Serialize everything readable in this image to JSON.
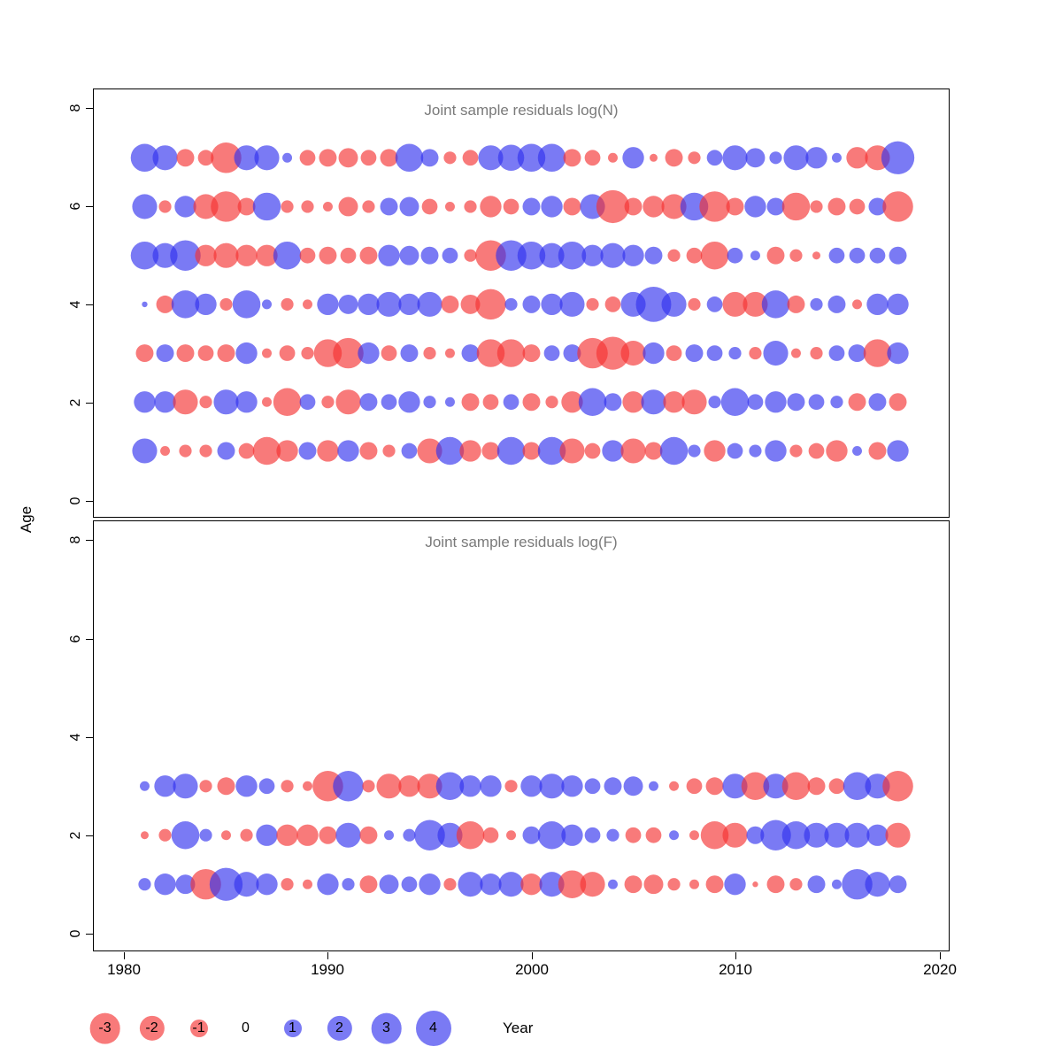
{
  "axes": {
    "x_label": "Year",
    "y_label": "Age",
    "x_ticks": [
      "1980",
      "1990",
      "2000",
      "2010",
      "2020"
    ],
    "y_ticks": [
      "0",
      "2",
      "4",
      "6",
      "8"
    ]
  },
  "legend": {
    "items": [
      {
        "label": "-3",
        "value": -3
      },
      {
        "label": "-2",
        "value": -2
      },
      {
        "label": "-1",
        "value": -1
      },
      {
        "label": "0",
        "value": 0
      },
      {
        "label": "1",
        "value": 1
      },
      {
        "label": "2",
        "value": 2
      },
      {
        "label": "3",
        "value": 3
      },
      {
        "label": "4",
        "value": 4
      }
    ]
  },
  "colors": {
    "negative": "#f53333",
    "positive": "#3333ee",
    "bubble_opacity": 0.65,
    "title_text": "#7a7a7a"
  },
  "chart_data": [
    {
      "type": "bubble",
      "title": "Joint sample residuals log(N)",
      "xlabel": "Year",
      "ylabel": "Age",
      "xlim": [
        1978.5,
        2020.5
      ],
      "ylim": [
        0,
        8
      ],
      "x_ticks": [
        1980,
        1990,
        2000,
        2010,
        2020
      ],
      "y_ticks": [
        0,
        2,
        4,
        6,
        8
      ],
      "size_encoding": "radius proportional to sqrt(|value|); red = negative residual, blue = positive residual",
      "years": [
        1981,
        1982,
        1983,
        1984,
        1985,
        1986,
        1987,
        1988,
        1989,
        1990,
        1991,
        1992,
        1993,
        1994,
        1995,
        1996,
        1997,
        1998,
        1999,
        2000,
        2001,
        2002,
        2003,
        2004,
        2005,
        2006,
        2007,
        2008,
        2009,
        2010,
        2011,
        2012,
        2013,
        2014,
        2015,
        2016,
        2017,
        2018
      ],
      "series": [
        {
          "age": 7,
          "values": [
            2.5,
            2,
            -1,
            -0.8,
            -3,
            2,
            2,
            0.3,
            -0.8,
            -1,
            -1.2,
            -0.8,
            -1,
            2.5,
            1,
            -0.5,
            -0.8,
            2,
            2.2,
            2.5,
            2.5,
            -1,
            -0.8,
            -0.3,
            1.5,
            -0.2,
            -1,
            -0.5,
            0.8,
            2,
            1.2,
            0.5,
            2,
            1.5,
            0.3,
            -1.5,
            -2,
            3.5
          ]
        },
        {
          "age": 6,
          "values": [
            2,
            -0.5,
            1.5,
            -2,
            -3,
            -1,
            2.5,
            -0.5,
            -0.5,
            -0.3,
            -1.2,
            -0.5,
            1,
            1.2,
            -0.8,
            -0.3,
            -0.5,
            -1.5,
            -0.8,
            1,
            1.5,
            -1,
            2,
            -3.5,
            -1,
            -1.5,
            -2,
            2.5,
            -3,
            -1,
            1.5,
            1,
            -2.5,
            -0.5,
            -1,
            -0.8,
            1,
            -3
          ]
        },
        {
          "age": 5,
          "values": [
            2.5,
            2,
            3,
            -1.5,
            -2,
            -1.5,
            -1.5,
            2.5,
            -0.8,
            -1,
            -0.8,
            -1,
            1.5,
            1.2,
            1,
            0.8,
            -0.5,
            -3,
            3,
            2.5,
            2,
            2.5,
            1.5,
            2,
            1.5,
            1,
            -0.5,
            -0.8,
            -2.5,
            0.8,
            0.3,
            -1,
            -0.5,
            -0.2,
            0.8,
            0.8,
            0.8,
            1
          ]
        },
        {
          "age": 4,
          "values": [
            0.1,
            -1,
            2.5,
            1.5,
            -0.5,
            2.5,
            0.3,
            -0.5,
            -0.3,
            1.5,
            1.2,
            1.5,
            2,
            1.5,
            2,
            -1,
            -1.2,
            -3,
            0.5,
            1,
            1.5,
            2,
            -0.5,
            -0.8,
            2,
            4,
            2,
            -0.5,
            0.8,
            -2,
            -2,
            2.5,
            -1,
            0.5,
            1,
            -0.3,
            1.5,
            1.5
          ]
        },
        {
          "age": 3,
          "values": [
            -1,
            1,
            -1,
            -0.8,
            -1,
            1.5,
            -0.3,
            -0.8,
            -0.5,
            -2.5,
            -3,
            1.5,
            -0.8,
            1,
            -0.5,
            -0.3,
            1,
            -2.5,
            -2.5,
            -1,
            0.8,
            1,
            -3,
            -3.5,
            -2,
            1.5,
            -0.8,
            1,
            0.8,
            0.5,
            -0.5,
            2,
            -0.3,
            -0.5,
            0.8,
            1,
            -2.5,
            1.5
          ]
        },
        {
          "age": 2,
          "values": [
            1.5,
            1.5,
            -2,
            -0.5,
            2,
            1.5,
            -0.3,
            -2.5,
            0.8,
            -0.5,
            -2,
            1,
            0.8,
            1.5,
            0.5,
            0.3,
            -1,
            -0.8,
            0.8,
            -1,
            -0.5,
            -1.5,
            2.5,
            1,
            -1.5,
            2,
            -1.5,
            -2,
            0.5,
            2.5,
            0.8,
            1.5,
            1,
            0.8,
            0.5,
            -1,
            1,
            -1
          ]
        },
        {
          "age": 1,
          "values": [
            2,
            -0.3,
            -0.5,
            -0.5,
            1,
            -0.8,
            -2.5,
            -1.5,
            1,
            -1.5,
            1.5,
            -1,
            -0.5,
            0.8,
            -2,
            2.5,
            -1.5,
            -1,
            2.5,
            -1,
            2.5,
            -2,
            -0.8,
            1.5,
            -2,
            -1,
            2.5,
            0.5,
            -1.5,
            0.8,
            0.5,
            1.5,
            -0.5,
            -0.8,
            -1.5,
            0.3,
            -1,
            1.5
          ]
        }
      ]
    },
    {
      "type": "bubble",
      "title": "Joint sample residuals log(F)",
      "xlabel": "Year",
      "ylabel": "Age",
      "xlim": [
        1978.5,
        2020.5
      ],
      "ylim": [
        0,
        8
      ],
      "x_ticks": [
        1980,
        1990,
        2000,
        2010,
        2020
      ],
      "y_ticks": [
        0,
        2,
        4,
        6,
        8
      ],
      "size_encoding": "radius proportional to sqrt(|value|); red = negative residual, blue = positive residual",
      "years": [
        1981,
        1982,
        1983,
        1984,
        1985,
        1986,
        1987,
        1988,
        1989,
        1990,
        1991,
        1992,
        1993,
        1994,
        1995,
        1996,
        1997,
        1998,
        1999,
        2000,
        2001,
        2002,
        2003,
        2004,
        2005,
        2006,
        2007,
        2008,
        2009,
        2010,
        2011,
        2012,
        2013,
        2014,
        2015,
        2016,
        2017,
        2018
      ],
      "series": [
        {
          "age": 3,
          "values": [
            0.3,
            1.5,
            2,
            -0.5,
            -1,
            1.5,
            0.8,
            -0.5,
            -0.3,
            -3,
            3,
            -0.5,
            -2,
            -1.5,
            -2,
            2.5,
            1.5,
            1.5,
            -0.5,
            1.5,
            2,
            1.5,
            0.8,
            1,
            1.2,
            0.3,
            -0.3,
            -0.8,
            -1,
            2,
            -2.5,
            2,
            -2.5,
            -1,
            -0.8,
            2.5,
            2,
            -3
          ]
        },
        {
          "age": 2,
          "values": [
            -0.2,
            -0.5,
            2.5,
            0.5,
            -0.3,
            -0.5,
            1.5,
            -1.5,
            -1.5,
            -1,
            2,
            -1,
            0.3,
            0.5,
            3,
            2,
            -2.5,
            -0.8,
            -0.3,
            1,
            2.5,
            1.5,
            0.8,
            0.5,
            -0.8,
            -0.8,
            0.3,
            -0.3,
            -2.5,
            -2,
            1,
            3,
            2.5,
            2,
            2,
            2,
            1.5,
            -2
          ]
        },
        {
          "age": 1,
          "values": [
            0.5,
            1.5,
            1.2,
            -3,
            3.5,
            2,
            1.5,
            -0.5,
            -0.3,
            1.5,
            0.5,
            -1,
            1.2,
            0.8,
            1.5,
            -0.5,
            2,
            1.5,
            2,
            -1.5,
            2,
            -2.5,
            -2,
            0.3,
            -1,
            -1.2,
            -0.5,
            -0.3,
            -1,
            1.5,
            -0.1,
            -1,
            -0.5,
            1,
            0.3,
            3,
            2,
            1
          ]
        }
      ]
    }
  ]
}
